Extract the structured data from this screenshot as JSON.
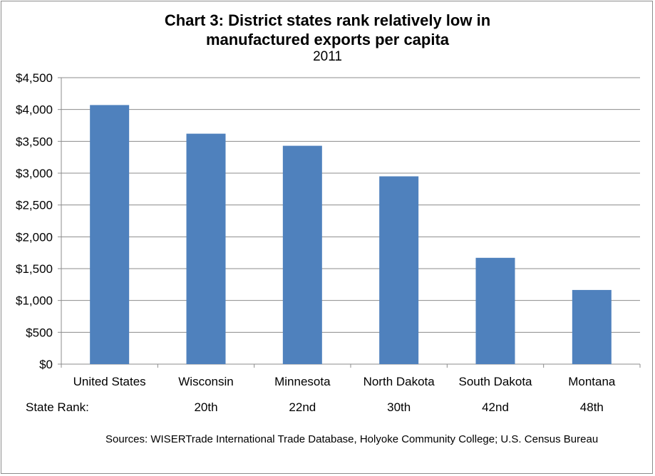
{
  "chart_data": {
    "type": "bar",
    "title_lines": [
      "Chart 3: District states rank relatively low in",
      "manufactured exports per capita"
    ],
    "subtitle": "2011",
    "categories": [
      "United States",
      "Wisconsin",
      "Minnesota",
      "North Dakota",
      "South Dakota",
      "Montana"
    ],
    "values": [
      4070,
      3620,
      3430,
      2950,
      1670,
      1165
    ],
    "ylim": [
      0,
      4500
    ],
    "yticks": [
      0,
      500,
      1000,
      1500,
      2000,
      2500,
      3000,
      3500,
      4000,
      4500
    ],
    "ytick_labels": [
      "$0",
      "$500",
      "$1,000",
      "$1,500",
      "$2,000",
      "$2,500",
      "$3,000",
      "$3,500",
      "$4,000",
      "$4,500"
    ],
    "grid": true,
    "legend": "none",
    "bar_color": "#4f81bd",
    "rank_caption": "State Rank:",
    "ranks": [
      "",
      "20th",
      "22nd",
      "30th",
      "42nd",
      "48th"
    ]
  },
  "source_text": "Sources:  WISERTrade International Trade Database, Holyoke Community College; U.S. Census Bureau"
}
